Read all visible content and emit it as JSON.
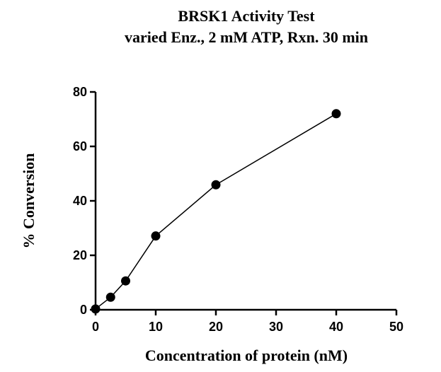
{
  "chart_data": {
    "type": "line",
    "title": "BRSK1 Activity Test",
    "subtitle": "varied Enz., 2 mM ATP, Rxn. 30 min",
    "xlabel": "Concentration of protein (nM)",
    "ylabel": "% Conversion",
    "xlim": [
      0,
      50
    ],
    "ylim": [
      0,
      80
    ],
    "xticks": [
      0,
      10,
      20,
      30,
      40,
      50
    ],
    "yticks": [
      0,
      20,
      40,
      60,
      80
    ],
    "grid": false,
    "series": [
      {
        "x": [
          0,
          2.5,
          5,
          10,
          20,
          40
        ],
        "y": [
          0.3,
          4.6,
          10.6,
          27.1,
          45.9,
          72.0
        ],
        "color": "#000000",
        "marker": "circle"
      }
    ]
  }
}
